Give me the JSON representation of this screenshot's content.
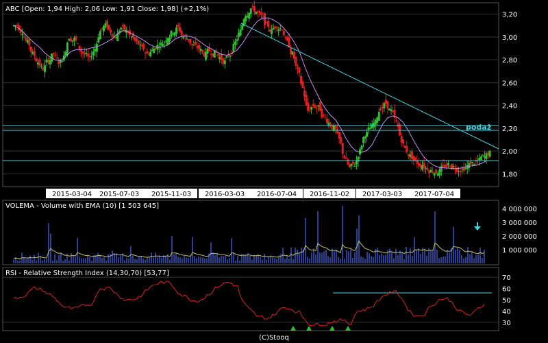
{
  "chart_data": [
    {
      "type": "candlestick",
      "title": "ABC [Open: 1,94  High: 2,06  Low: 1,91  Close: 1,98] (+2,1%)",
      "y_ticks": [
        "3,20",
        "3,00",
        "2,80",
        "2,60",
        "2,40",
        "2,20",
        "2,00",
        "1,80"
      ],
      "ylim": [
        1.7,
        3.3
      ],
      "x_labels": [
        "2015-03-04",
        "2015-07-03",
        "2015-11-03",
        "2016-03-03",
        "2016-07-04",
        "2016-11-02",
        "2017-03-03",
        "2017-07-04"
      ],
      "annotation": "podaż",
      "horizontal_lines": [
        2.15,
        2.11,
        1.81
      ],
      "trendline": {
        "from": [
          "2016-01-20",
          3.3
        ],
        "to": [
          "2017-09-20",
          1.9
        ]
      },
      "close_series_note": "approximate closes per period",
      "closes": [
        3.1,
        3.05,
        2.95,
        2.85,
        2.78,
        2.72,
        2.8,
        2.85,
        2.78,
        2.82,
        3.0,
        2.98,
        2.9,
        2.85,
        2.8,
        2.9,
        3.05,
        3.1,
        3.05,
        3.0,
        3.08,
        3.05,
        3.0,
        2.95,
        2.9,
        2.85,
        2.88,
        2.92,
        2.95,
        3.0,
        3.05,
        3.08,
        3.0,
        2.98,
        2.92,
        2.9,
        2.85,
        2.88,
        2.86,
        2.82,
        2.78,
        2.85,
        2.95,
        3.05,
        3.2,
        3.25,
        3.22,
        3.18,
        3.1,
        3.05,
        3.1,
        3.08,
        2.95,
        2.85,
        2.7,
        2.55,
        2.35,
        2.4,
        2.38,
        2.3,
        2.25,
        2.2,
        2.1,
        1.95,
        1.85,
        1.88,
        2.0,
        2.15,
        2.2,
        2.25,
        2.38,
        2.42,
        2.35,
        2.25,
        2.1,
        2.0,
        1.95,
        1.9,
        1.88,
        1.85,
        1.83,
        1.82,
        1.85,
        1.88,
        1.86,
        1.84,
        1.85,
        1.88,
        1.9,
        1.92,
        1.95,
        1.98
      ]
    },
    {
      "type": "bar",
      "title": "VOLEMA - Volume with EMA (10) [1 503 645]",
      "y_ticks": [
        "4 000 000",
        "3 000 000",
        "2 000 000",
        "1 000 000"
      ],
      "ylim": [
        0,
        4500000
      ]
    },
    {
      "type": "line",
      "title": "RSI - Relative Strength Index (14,30,70) [53,77]",
      "y_ticks": [
        "70",
        "60",
        "50",
        "40",
        "30"
      ],
      "ylim": [
        25,
        75
      ],
      "level_line": 56
    }
  ],
  "footer": "(C)Stooq"
}
